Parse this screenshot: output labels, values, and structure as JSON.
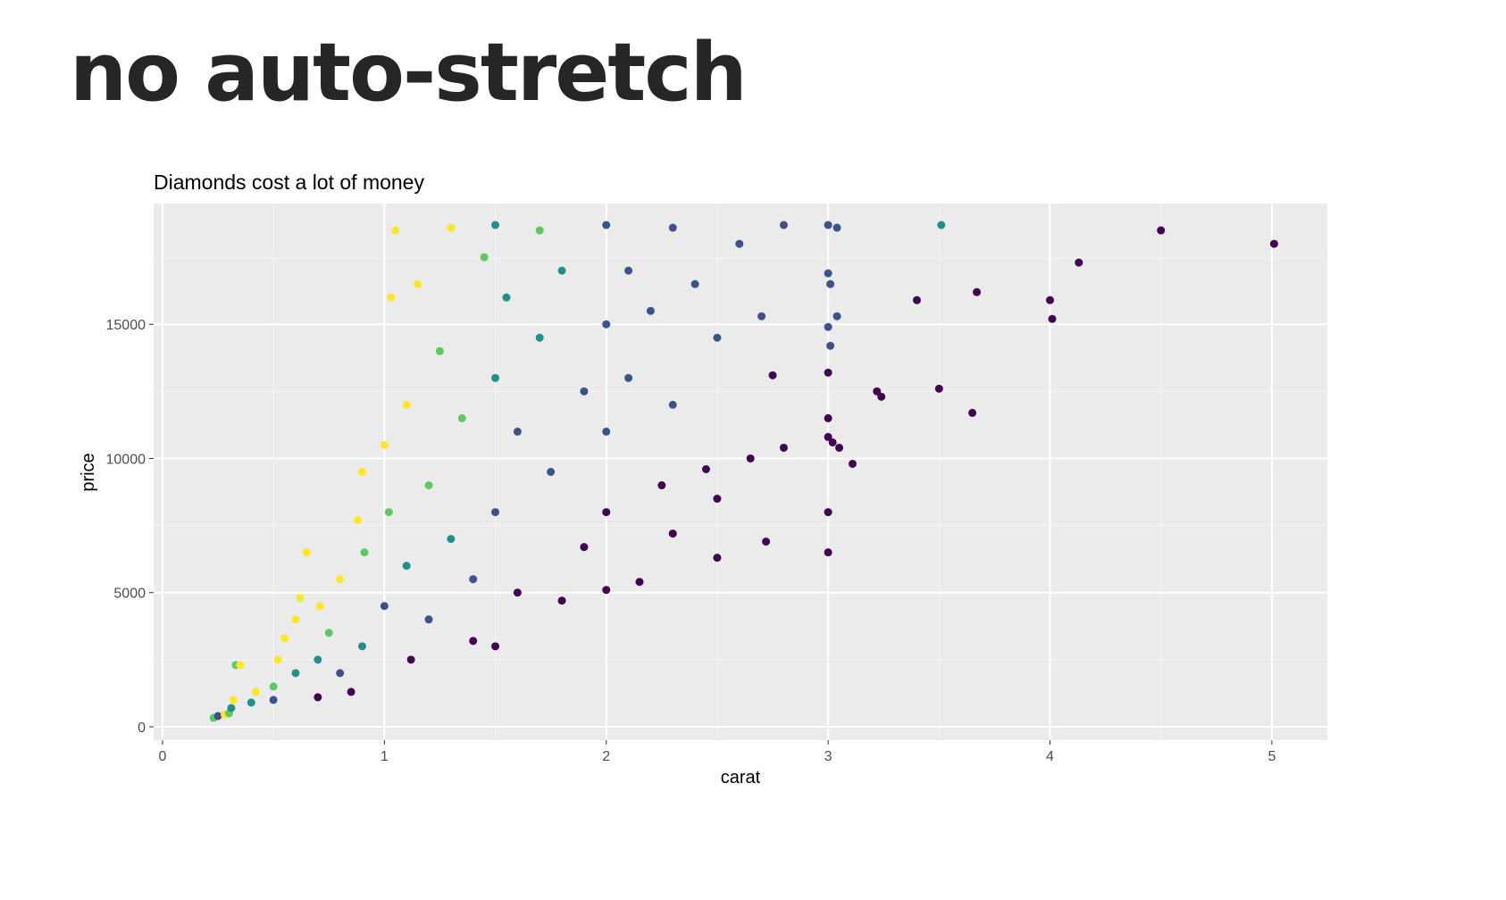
{
  "slide": {
    "title": "no auto-stretch"
  },
  "chart_data": {
    "type": "scatter",
    "title": "Diamonds cost a lot of money",
    "xlabel": "carat",
    "ylabel": "price",
    "xlim": [
      -0.04,
      5.25
    ],
    "ylim": [
      -500,
      19500
    ],
    "x_ticks": [
      0,
      1,
      2,
      3,
      4,
      5
    ],
    "x_tick_labels": [
      "0",
      "1",
      "2",
      "3",
      "4",
      "5"
    ],
    "y_ticks": [
      0,
      5000,
      10000,
      15000
    ],
    "y_tick_labels": [
      "0",
      "5000",
      "10000",
      "15000"
    ],
    "grid": true,
    "legend": "none",
    "color_scale": [
      "#440154",
      "#3b528b",
      "#21908c",
      "#5dc963",
      "#fde725"
    ],
    "panel_background": "#ebebeb",
    "points": [
      {
        "x": 0.23,
        "y": 330,
        "c": 3
      },
      {
        "x": 0.25,
        "y": 400,
        "c": 1
      },
      {
        "x": 0.28,
        "y": 450,
        "c": 4
      },
      {
        "x": 0.3,
        "y": 500,
        "c": 3
      },
      {
        "x": 0.31,
        "y": 700,
        "c": 2
      },
      {
        "x": 0.32,
        "y": 1000,
        "c": 4
      },
      {
        "x": 0.33,
        "y": 2300,
        "c": 3
      },
      {
        "x": 0.35,
        "y": 2300,
        "c": 4
      },
      {
        "x": 0.4,
        "y": 900,
        "c": 2
      },
      {
        "x": 0.42,
        "y": 1300,
        "c": 4
      },
      {
        "x": 0.5,
        "y": 1500,
        "c": 3
      },
      {
        "x": 0.5,
        "y": 1000,
        "c": 1
      },
      {
        "x": 0.52,
        "y": 2500,
        "c": 4
      },
      {
        "x": 0.55,
        "y": 3300,
        "c": 4
      },
      {
        "x": 0.6,
        "y": 2000,
        "c": 2
      },
      {
        "x": 0.6,
        "y": 4000,
        "c": 4
      },
      {
        "x": 0.62,
        "y": 4800,
        "c": 4
      },
      {
        "x": 0.65,
        "y": 6500,
        "c": 4
      },
      {
        "x": 0.7,
        "y": 1100,
        "c": 0
      },
      {
        "x": 0.7,
        "y": 2500,
        "c": 2
      },
      {
        "x": 0.71,
        "y": 4500,
        "c": 4
      },
      {
        "x": 0.75,
        "y": 3500,
        "c": 3
      },
      {
        "x": 0.8,
        "y": 2000,
        "c": 1
      },
      {
        "x": 0.8,
        "y": 5500,
        "c": 4
      },
      {
        "x": 0.85,
        "y": 1300,
        "c": 0
      },
      {
        "x": 0.88,
        "y": 7700,
        "c": 4
      },
      {
        "x": 0.9,
        "y": 3000,
        "c": 2
      },
      {
        "x": 0.9,
        "y": 9500,
        "c": 4
      },
      {
        "x": 0.91,
        "y": 6500,
        "c": 3
      },
      {
        "x": 1.0,
        "y": 4500,
        "c": 1
      },
      {
        "x": 1.0,
        "y": 10500,
        "c": 4
      },
      {
        "x": 1.02,
        "y": 8000,
        "c": 3
      },
      {
        "x": 1.03,
        "y": 16000,
        "c": 4
      },
      {
        "x": 1.05,
        "y": 18500,
        "c": 4
      },
      {
        "x": 1.1,
        "y": 12000,
        "c": 4
      },
      {
        "x": 1.1,
        "y": 6000,
        "c": 2
      },
      {
        "x": 1.12,
        "y": 2500,
        "c": 0
      },
      {
        "x": 1.15,
        "y": 16500,
        "c": 4
      },
      {
        "x": 1.2,
        "y": 9000,
        "c": 3
      },
      {
        "x": 1.2,
        "y": 4000,
        "c": 1
      },
      {
        "x": 1.25,
        "y": 14000,
        "c": 3
      },
      {
        "x": 1.3,
        "y": 18600,
        "c": 4
      },
      {
        "x": 1.3,
        "y": 7000,
        "c": 2
      },
      {
        "x": 1.35,
        "y": 11500,
        "c": 3
      },
      {
        "x": 1.4,
        "y": 5500,
        "c": 1
      },
      {
        "x": 1.4,
        "y": 3200,
        "c": 0
      },
      {
        "x": 1.45,
        "y": 17500,
        "c": 3
      },
      {
        "x": 1.5,
        "y": 18700,
        "c": 2
      },
      {
        "x": 1.5,
        "y": 13000,
        "c": 2
      },
      {
        "x": 1.5,
        "y": 8000,
        "c": 1
      },
      {
        "x": 1.5,
        "y": 3000,
        "c": 0
      },
      {
        "x": 1.55,
        "y": 16000,
        "c": 2
      },
      {
        "x": 1.6,
        "y": 11000,
        "c": 1
      },
      {
        "x": 1.6,
        "y": 5000,
        "c": 0
      },
      {
        "x": 1.7,
        "y": 18500,
        "c": 3
      },
      {
        "x": 1.7,
        "y": 14500,
        "c": 2
      },
      {
        "x": 1.75,
        "y": 9500,
        "c": 1
      },
      {
        "x": 1.8,
        "y": 4700,
        "c": 0
      },
      {
        "x": 1.8,
        "y": 17000,
        "c": 2
      },
      {
        "x": 1.9,
        "y": 12500,
        "c": 1
      },
      {
        "x": 1.9,
        "y": 6700,
        "c": 0
      },
      {
        "x": 2.0,
        "y": 18700,
        "c": 1
      },
      {
        "x": 2.0,
        "y": 15000,
        "c": 1
      },
      {
        "x": 2.0,
        "y": 11000,
        "c": 1
      },
      {
        "x": 2.0,
        "y": 8000,
        "c": 0
      },
      {
        "x": 2.0,
        "y": 5100,
        "c": 0
      },
      {
        "x": 2.1,
        "y": 17000,
        "c": 1
      },
      {
        "x": 2.1,
        "y": 13000,
        "c": 1
      },
      {
        "x": 2.15,
        "y": 5400,
        "c": 0
      },
      {
        "x": 2.2,
        "y": 15500,
        "c": 1
      },
      {
        "x": 2.25,
        "y": 9000,
        "c": 0
      },
      {
        "x": 2.3,
        "y": 18600,
        "c": 1
      },
      {
        "x": 2.3,
        "y": 12000,
        "c": 1
      },
      {
        "x": 2.3,
        "y": 7200,
        "c": 0
      },
      {
        "x": 2.4,
        "y": 16500,
        "c": 1
      },
      {
        "x": 2.45,
        "y": 9600,
        "c": 0
      },
      {
        "x": 2.5,
        "y": 14500,
        "c": 1
      },
      {
        "x": 2.5,
        "y": 8500,
        "c": 0
      },
      {
        "x": 2.5,
        "y": 6300,
        "c": 0
      },
      {
        "x": 2.6,
        "y": 18000,
        "c": 1
      },
      {
        "x": 2.65,
        "y": 10000,
        "c": 0
      },
      {
        "x": 2.7,
        "y": 15300,
        "c": 1
      },
      {
        "x": 2.72,
        "y": 6900,
        "c": 0
      },
      {
        "x": 2.75,
        "y": 13100,
        "c": 0
      },
      {
        "x": 2.8,
        "y": 18700,
        "c": 1
      },
      {
        "x": 2.8,
        "y": 10400,
        "c": 0
      },
      {
        "x": 3.0,
        "y": 18700,
        "c": 1
      },
      {
        "x": 3.0,
        "y": 16900,
        "c": 1
      },
      {
        "x": 3.0,
        "y": 14900,
        "c": 1
      },
      {
        "x": 3.0,
        "y": 13200,
        "c": 0
      },
      {
        "x": 3.0,
        "y": 11500,
        "c": 0
      },
      {
        "x": 3.0,
        "y": 10800,
        "c": 0
      },
      {
        "x": 3.0,
        "y": 8000,
        "c": 0
      },
      {
        "x": 3.0,
        "y": 6500,
        "c": 0
      },
      {
        "x": 3.01,
        "y": 16500,
        "c": 1
      },
      {
        "x": 3.01,
        "y": 14200,
        "c": 1
      },
      {
        "x": 3.02,
        "y": 10600,
        "c": 0
      },
      {
        "x": 3.04,
        "y": 18600,
        "c": 1
      },
      {
        "x": 3.04,
        "y": 15300,
        "c": 1
      },
      {
        "x": 3.05,
        "y": 10400,
        "c": 0
      },
      {
        "x": 3.11,
        "y": 9800,
        "c": 0
      },
      {
        "x": 3.22,
        "y": 12500,
        "c": 0
      },
      {
        "x": 3.24,
        "y": 12300,
        "c": 0
      },
      {
        "x": 3.4,
        "y": 15900,
        "c": 0
      },
      {
        "x": 3.5,
        "y": 12600,
        "c": 0
      },
      {
        "x": 3.51,
        "y": 18700,
        "c": 2
      },
      {
        "x": 3.65,
        "y": 11700,
        "c": 0
      },
      {
        "x": 3.67,
        "y": 16200,
        "c": 0
      },
      {
        "x": 4.0,
        "y": 15900,
        "c": 0
      },
      {
        "x": 4.01,
        "y": 15200,
        "c": 0
      },
      {
        "x": 4.13,
        "y": 17300,
        "c": 0
      },
      {
        "x": 4.5,
        "y": 18500,
        "c": 0
      },
      {
        "x": 5.01,
        "y": 18000,
        "c": 0
      }
    ]
  }
}
